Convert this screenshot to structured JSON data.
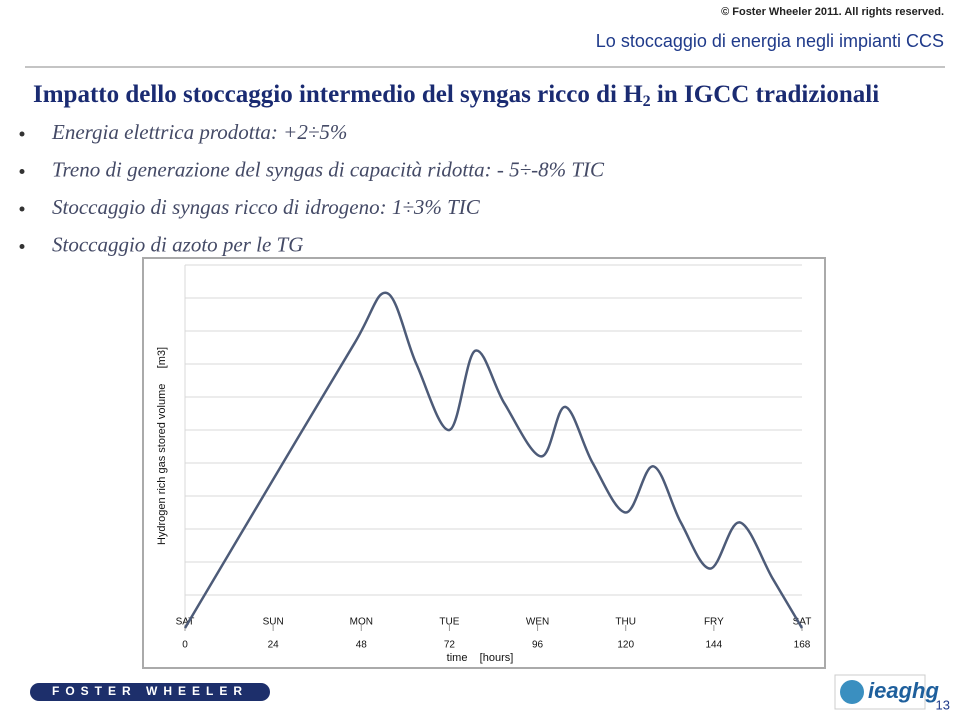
{
  "copyright": "© Foster Wheeler 2011. All rights reserved.",
  "header": "Lo stoccaggio di energia negli impianti CCS",
  "title": {
    "before": "Impatto dello stoccaggio intermedio del syngas ricco di H",
    "sub": "2",
    "after": " in IGCC tradizionali"
  },
  "bullets": [
    "Energia elettrica prodotta: +2÷5%",
    "Treno di generazione del syngas di capacità ridotta: - 5÷-8% TIC",
    "Stoccaggio di syngas ricco di idrogeno: 1÷3% TIC",
    "Stoccaggio di azoto per le TG"
  ],
  "chart_data": {
    "type": "line",
    "ylabel": "Hydrogen rich gas stored volume     [m3]",
    "xlabel": "time    [hours]",
    "x": [
      0,
      24,
      46,
      55,
      63,
      72,
      79,
      87,
      97,
      103.5,
      111,
      120,
      127.5,
      135,
      143,
      151,
      160,
      168
    ],
    "series": [
      {
        "color": "#4d5b78",
        "values": [
          0,
          4.5,
          8.6,
          10.15,
          8,
          6,
          8.4,
          6.8,
          5.2,
          6.7,
          5,
          3.5,
          4.9,
          3.2,
          1.8,
          3.2,
          1.5,
          0
        ]
      }
    ],
    "xlim": [
      0,
      168
    ],
    "xticks": [
      0,
      24,
      48,
      72,
      96,
      120,
      144,
      168
    ],
    "day_labels": [
      "SAT",
      "SUN",
      "MON",
      "TUE",
      "WEN",
      "THU",
      "FRY",
      "SAT"
    ],
    "ylim": [
      0,
      11
    ],
    "grid": true
  },
  "footer": {
    "left_logo": "FOSTER WHEELER",
    "right_logo": "ieaghg",
    "page": "13"
  }
}
